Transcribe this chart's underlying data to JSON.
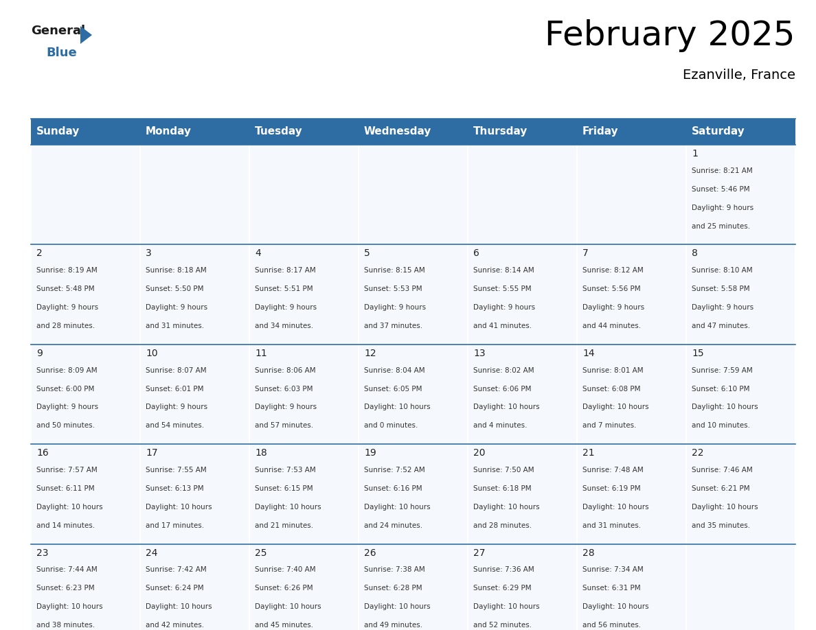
{
  "title": "February 2025",
  "subtitle": "Ezanville, France",
  "header_color": "#2e6da4",
  "header_text_color": "#ffffff",
  "cell_bg_even": "#f5f8fc",
  "cell_bg_odd": "#f5f8fc",
  "line_color": "#2e6da4",
  "text_color": "#333333",
  "day_number_color": "#222222",
  "day_headers": [
    "Sunday",
    "Monday",
    "Tuesday",
    "Wednesday",
    "Thursday",
    "Friday",
    "Saturday"
  ],
  "days": [
    {
      "day": 1,
      "col": 6,
      "row": 0,
      "sunrise": "8:21 AM",
      "sunset": "5:46 PM",
      "daylight_hours": 9,
      "daylight_minutes": 25
    },
    {
      "day": 2,
      "col": 0,
      "row": 1,
      "sunrise": "8:19 AM",
      "sunset": "5:48 PM",
      "daylight_hours": 9,
      "daylight_minutes": 28
    },
    {
      "day": 3,
      "col": 1,
      "row": 1,
      "sunrise": "8:18 AM",
      "sunset": "5:50 PM",
      "daylight_hours": 9,
      "daylight_minutes": 31
    },
    {
      "day": 4,
      "col": 2,
      "row": 1,
      "sunrise": "8:17 AM",
      "sunset": "5:51 PM",
      "daylight_hours": 9,
      "daylight_minutes": 34
    },
    {
      "day": 5,
      "col": 3,
      "row": 1,
      "sunrise": "8:15 AM",
      "sunset": "5:53 PM",
      "daylight_hours": 9,
      "daylight_minutes": 37
    },
    {
      "day": 6,
      "col": 4,
      "row": 1,
      "sunrise": "8:14 AM",
      "sunset": "5:55 PM",
      "daylight_hours": 9,
      "daylight_minutes": 41
    },
    {
      "day": 7,
      "col": 5,
      "row": 1,
      "sunrise": "8:12 AM",
      "sunset": "5:56 PM",
      "daylight_hours": 9,
      "daylight_minutes": 44
    },
    {
      "day": 8,
      "col": 6,
      "row": 1,
      "sunrise": "8:10 AM",
      "sunset": "5:58 PM",
      "daylight_hours": 9,
      "daylight_minutes": 47
    },
    {
      "day": 9,
      "col": 0,
      "row": 2,
      "sunrise": "8:09 AM",
      "sunset": "6:00 PM",
      "daylight_hours": 9,
      "daylight_minutes": 50
    },
    {
      "day": 10,
      "col": 1,
      "row": 2,
      "sunrise": "8:07 AM",
      "sunset": "6:01 PM",
      "daylight_hours": 9,
      "daylight_minutes": 54
    },
    {
      "day": 11,
      "col": 2,
      "row": 2,
      "sunrise": "8:06 AM",
      "sunset": "6:03 PM",
      "daylight_hours": 9,
      "daylight_minutes": 57
    },
    {
      "day": 12,
      "col": 3,
      "row": 2,
      "sunrise": "8:04 AM",
      "sunset": "6:05 PM",
      "daylight_hours": 10,
      "daylight_minutes": 0
    },
    {
      "day": 13,
      "col": 4,
      "row": 2,
      "sunrise": "8:02 AM",
      "sunset": "6:06 PM",
      "daylight_hours": 10,
      "daylight_minutes": 4
    },
    {
      "day": 14,
      "col": 5,
      "row": 2,
      "sunrise": "8:01 AM",
      "sunset": "6:08 PM",
      "daylight_hours": 10,
      "daylight_minutes": 7
    },
    {
      "day": 15,
      "col": 6,
      "row": 2,
      "sunrise": "7:59 AM",
      "sunset": "6:10 PM",
      "daylight_hours": 10,
      "daylight_minutes": 10
    },
    {
      "day": 16,
      "col": 0,
      "row": 3,
      "sunrise": "7:57 AM",
      "sunset": "6:11 PM",
      "daylight_hours": 10,
      "daylight_minutes": 14
    },
    {
      "day": 17,
      "col": 1,
      "row": 3,
      "sunrise": "7:55 AM",
      "sunset": "6:13 PM",
      "daylight_hours": 10,
      "daylight_minutes": 17
    },
    {
      "day": 18,
      "col": 2,
      "row": 3,
      "sunrise": "7:53 AM",
      "sunset": "6:15 PM",
      "daylight_hours": 10,
      "daylight_minutes": 21
    },
    {
      "day": 19,
      "col": 3,
      "row": 3,
      "sunrise": "7:52 AM",
      "sunset": "6:16 PM",
      "daylight_hours": 10,
      "daylight_minutes": 24
    },
    {
      "day": 20,
      "col": 4,
      "row": 3,
      "sunrise": "7:50 AM",
      "sunset": "6:18 PM",
      "daylight_hours": 10,
      "daylight_minutes": 28
    },
    {
      "day": 21,
      "col": 5,
      "row": 3,
      "sunrise": "7:48 AM",
      "sunset": "6:19 PM",
      "daylight_hours": 10,
      "daylight_minutes": 31
    },
    {
      "day": 22,
      "col": 6,
      "row": 3,
      "sunrise": "7:46 AM",
      "sunset": "6:21 PM",
      "daylight_hours": 10,
      "daylight_minutes": 35
    },
    {
      "day": 23,
      "col": 0,
      "row": 4,
      "sunrise": "7:44 AM",
      "sunset": "6:23 PM",
      "daylight_hours": 10,
      "daylight_minutes": 38
    },
    {
      "day": 24,
      "col": 1,
      "row": 4,
      "sunrise": "7:42 AM",
      "sunset": "6:24 PM",
      "daylight_hours": 10,
      "daylight_minutes": 42
    },
    {
      "day": 25,
      "col": 2,
      "row": 4,
      "sunrise": "7:40 AM",
      "sunset": "6:26 PM",
      "daylight_hours": 10,
      "daylight_minutes": 45
    },
    {
      "day": 26,
      "col": 3,
      "row": 4,
      "sunrise": "7:38 AM",
      "sunset": "6:28 PM",
      "daylight_hours": 10,
      "daylight_minutes": 49
    },
    {
      "day": 27,
      "col": 4,
      "row": 4,
      "sunrise": "7:36 AM",
      "sunset": "6:29 PM",
      "daylight_hours": 10,
      "daylight_minutes": 52
    },
    {
      "day": 28,
      "col": 5,
      "row": 4,
      "sunrise": "7:34 AM",
      "sunset": "6:31 PM",
      "daylight_hours": 10,
      "daylight_minutes": 56
    }
  ],
  "num_rows": 5,
  "num_cols": 7,
  "logo_general_color": "#1a1a1a",
  "logo_blue_color": "#2e6da4",
  "logo_triangle_color": "#2e6da4",
  "title_fontsize": 36,
  "subtitle_fontsize": 14,
  "day_header_fontsize": 11,
  "day_num_fontsize": 10,
  "cell_text_fontsize": 7.5
}
